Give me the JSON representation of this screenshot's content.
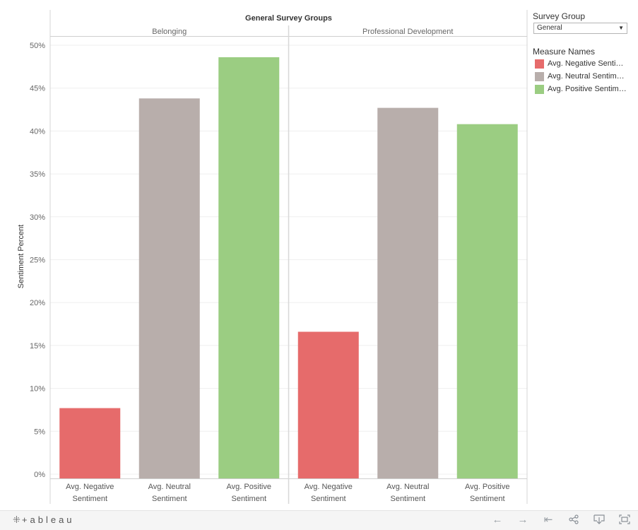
{
  "chart_data": {
    "type": "bar",
    "title": "General Survey Groups",
    "ylabel": "Sentiment Percent",
    "ylim": [
      0,
      52
    ],
    "yticks": [
      0,
      5,
      10,
      15,
      20,
      25,
      30,
      35,
      40,
      45,
      50
    ],
    "ytick_labels": [
      "0%",
      "5%",
      "10%",
      "15%",
      "20%",
      "25%",
      "30%",
      "35%",
      "40%",
      "45%",
      "50%"
    ],
    "grid": true,
    "panels": [
      {
        "name": "Belonging",
        "categories": [
          "Avg. Negative Sentiment",
          "Avg. Neutral Sentiment",
          "Avg. Positive Sentiment"
        ],
        "category_lines": [
          [
            "Avg. Negative",
            "Sentiment"
          ],
          [
            "Avg. Neutral",
            "Sentiment"
          ],
          [
            "Avg. Positive",
            "Sentiment"
          ]
        ],
        "values": [
          7.7,
          43.8,
          48.6
        ]
      },
      {
        "name": "Professional Development",
        "categories": [
          "Avg. Negative Sentiment",
          "Avg. Neutral Sentiment",
          "Avg. Positive Sentiment"
        ],
        "category_lines": [
          [
            "Avg. Negative",
            "Sentiment"
          ],
          [
            "Avg. Neutral",
            "Sentiment"
          ],
          [
            "Avg. Positive",
            "Sentiment"
          ]
        ],
        "values": [
          16.6,
          42.7,
          40.8
        ]
      }
    ],
    "colors": [
      "#e66b6b",
      "#b8aeab",
      "#9bcd82"
    ],
    "legend_placement": "right"
  },
  "filter": {
    "title": "Survey Group",
    "selected": "General"
  },
  "legend": {
    "title": "Measure Names",
    "items": [
      {
        "label": "Avg. Negative Sentiment",
        "color": "#e66b6b"
      },
      {
        "label": "Avg. Neutral Sentiment",
        "color": "#b8aeab"
      },
      {
        "label": "Avg. Positive Sentiment",
        "color": "#9bcd82"
      }
    ]
  },
  "footer": {
    "brand": "+ableau",
    "brand_icon": "tableau-logo-icon",
    "buttons": [
      "undo-icon",
      "redo-icon",
      "revert-icon",
      "share-icon",
      "download-icon",
      "fullscreen-icon"
    ]
  }
}
